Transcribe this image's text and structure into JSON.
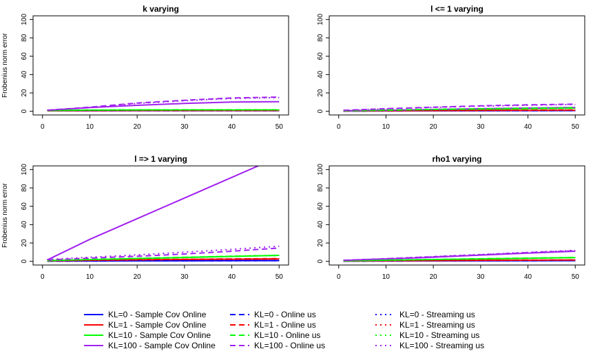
{
  "chart_data": [
    {
      "type": "line",
      "title": "k varying",
      "ylabel": "Frobenius norm error",
      "xlim": [
        0,
        50
      ],
      "ylim": [
        0,
        100
      ],
      "x": [
        1,
        10,
        20,
        30,
        40,
        50
      ],
      "series": [
        {
          "name": "KL=0 - Sample Cov Online",
          "color": "#0000ff",
          "dash": "solid",
          "values": [
            0.5,
            0.6,
            0.7,
            0.7,
            0.7,
            0.7
          ]
        },
        {
          "name": "KL=1 - Sample Cov Online",
          "color": "#ff0000",
          "dash": "solid",
          "values": [
            0.6,
            0.8,
            0.9,
            0.9,
            0.9,
            0.9
          ]
        },
        {
          "name": "KL=10 - Sample Cov Online",
          "color": "#00ff00",
          "dash": "solid",
          "values": [
            0.8,
            1.2,
            1.4,
            1.5,
            1.5,
            1.5
          ]
        },
        {
          "name": "KL=100 - Sample Cov Online",
          "color": "#a020f0",
          "dash": "solid",
          "values": [
            1.0,
            4.0,
            6.5,
            8.5,
            10.0,
            10.5
          ]
        },
        {
          "name": "KL=0 - Online us",
          "color": "#0000ff",
          "dash": "dashed",
          "values": [
            0.5,
            0.6,
            0.7,
            0.7,
            0.7,
            0.7
          ]
        },
        {
          "name": "KL=1 - Online us",
          "color": "#ff0000",
          "dash": "dashed",
          "values": [
            0.6,
            0.8,
            0.9,
            0.9,
            0.9,
            0.9
          ]
        },
        {
          "name": "KL=10 - Online us",
          "color": "#00ff00",
          "dash": "dashed",
          "values": [
            0.9,
            1.3,
            1.5,
            1.6,
            1.6,
            1.6
          ]
        },
        {
          "name": "KL=100 - Online us",
          "color": "#a020f0",
          "dash": "dashed",
          "values": [
            1.2,
            4.5,
            9.0,
            12.0,
            14.5,
            15.5
          ]
        },
        {
          "name": "KL=0 - Streaming us",
          "color": "#0000ff",
          "dash": "dotted",
          "values": [
            0.5,
            0.6,
            0.7,
            0.7,
            0.7,
            0.7
          ]
        },
        {
          "name": "KL=1 - Streaming us",
          "color": "#ff0000",
          "dash": "dotted",
          "values": [
            0.6,
            0.8,
            0.9,
            0.9,
            0.9,
            0.9
          ]
        },
        {
          "name": "KL=10 - Streaming us",
          "color": "#00ff00",
          "dash": "dotted",
          "values": [
            0.9,
            1.3,
            1.5,
            1.6,
            1.6,
            1.6
          ]
        },
        {
          "name": "KL=100 - Streaming us",
          "color": "#a020f0",
          "dash": "dotted",
          "values": [
            1.2,
            4.2,
            8.5,
            11.5,
            14.0,
            15.0
          ]
        }
      ]
    },
    {
      "type": "line",
      "title": "l <= 1 varying",
      "ylabel": "",
      "xlim": [
        0,
        50
      ],
      "ylim": [
        0,
        100
      ],
      "x": [
        1,
        10,
        20,
        30,
        40,
        50
      ],
      "series": [
        {
          "name": "KL=0 - Sample Cov Online",
          "color": "#0000ff",
          "dash": "solid",
          "values": [
            0.3,
            0.4,
            0.5,
            0.6,
            0.7,
            0.8
          ]
        },
        {
          "name": "KL=1 - Sample Cov Online",
          "color": "#ff0000",
          "dash": "solid",
          "values": [
            0.4,
            0.5,
            0.7,
            0.8,
            0.9,
            1.0
          ]
        },
        {
          "name": "KL=10 - Sample Cov Online",
          "color": "#00ff00",
          "dash": "solid",
          "values": [
            0.5,
            1.0,
            1.6,
            2.2,
            2.8,
            3.4
          ]
        },
        {
          "name": "KL=100 - Sample Cov Online",
          "color": "#a020f0",
          "dash": "solid",
          "values": [
            0.6,
            1.2,
            2.0,
            2.8,
            3.5,
            4.2
          ]
        },
        {
          "name": "KL=0 - Online us",
          "color": "#0000ff",
          "dash": "dashed",
          "values": [
            0.3,
            0.4,
            0.5,
            0.6,
            0.7,
            0.8
          ]
        },
        {
          "name": "KL=1 - Online us",
          "color": "#ff0000",
          "dash": "dashed",
          "values": [
            0.4,
            0.6,
            0.8,
            1.0,
            1.2,
            1.4
          ]
        },
        {
          "name": "KL=10 - Online us",
          "color": "#00ff00",
          "dash": "dashed",
          "values": [
            0.6,
            1.2,
            2.0,
            2.6,
            3.2,
            3.8
          ]
        },
        {
          "name": "KL=100 - Online us",
          "color": "#a020f0",
          "dash": "dashed",
          "values": [
            1.0,
            2.8,
            4.5,
            6.0,
            7.0,
            7.8
          ]
        },
        {
          "name": "KL=0 - Streaming us",
          "color": "#0000ff",
          "dash": "dotted",
          "values": [
            0.3,
            0.4,
            0.5,
            0.6,
            0.7,
            0.8
          ]
        },
        {
          "name": "KL=1 - Streaming us",
          "color": "#ff0000",
          "dash": "dotted",
          "values": [
            0.4,
            0.6,
            0.8,
            1.0,
            1.2,
            1.4
          ]
        },
        {
          "name": "KL=10 - Streaming us",
          "color": "#00ff00",
          "dash": "dotted",
          "values": [
            0.6,
            1.2,
            2.0,
            2.6,
            3.2,
            3.8
          ]
        },
        {
          "name": "KL=100 - Streaming us",
          "color": "#a020f0",
          "dash": "dotted",
          "values": [
            0.9,
            2.6,
            4.2,
            5.6,
            6.6,
            7.4
          ]
        }
      ]
    },
    {
      "type": "line",
      "title": "l => 1 varying",
      "ylabel": "Frobenius norm error",
      "xlim": [
        0,
        50
      ],
      "ylim": [
        0,
        100
      ],
      "x": [
        1,
        10,
        20,
        30,
        40,
        50
      ],
      "series": [
        {
          "name": "KL=0 - Sample Cov Online",
          "color": "#0000ff",
          "dash": "solid",
          "values": [
            0.3,
            0.4,
            0.5,
            0.6,
            0.7,
            0.8
          ]
        },
        {
          "name": "KL=1 - Sample Cov Online",
          "color": "#ff0000",
          "dash": "solid",
          "values": [
            0.5,
            1.0,
            1.5,
            2.0,
            2.3,
            2.5
          ]
        },
        {
          "name": "KL=10 - Sample Cov Online",
          "color": "#00ff00",
          "dash": "solid",
          "values": [
            0.8,
            1.8,
            3.0,
            4.2,
            5.4,
            6.5
          ]
        },
        {
          "name": "KL=100 - Sample Cov Online",
          "color": "#a020f0",
          "dash": "solid",
          "values": [
            1.5,
            24.0,
            46.5,
            69.0,
            91.5,
            114.0
          ]
        },
        {
          "name": "KL=0 - Online us",
          "color": "#0000ff",
          "dash": "dashed",
          "values": [
            0.3,
            0.4,
            0.5,
            0.6,
            0.7,
            0.8
          ]
        },
        {
          "name": "KL=1 - Online us",
          "color": "#ff0000",
          "dash": "dashed",
          "values": [
            0.6,
            1.2,
            1.8,
            2.2,
            2.6,
            3.0
          ]
        },
        {
          "name": "KL=10 - Online us",
          "color": "#00ff00",
          "dash": "dashed",
          "values": [
            0.9,
            2.0,
            3.2,
            4.4,
            5.5,
            6.5
          ]
        },
        {
          "name": "KL=100 - Online us",
          "color": "#a020f0",
          "dash": "dashed",
          "values": [
            1.5,
            3.5,
            5.5,
            8.0,
            11.0,
            14.5
          ]
        },
        {
          "name": "KL=0 - Streaming us",
          "color": "#0000ff",
          "dash": "dotted",
          "values": [
            0.3,
            0.4,
            0.5,
            0.6,
            0.7,
            0.8
          ]
        },
        {
          "name": "KL=1 - Streaming us",
          "color": "#ff0000",
          "dash": "dotted",
          "values": [
            0.6,
            1.2,
            1.8,
            2.2,
            2.6,
            3.0
          ]
        },
        {
          "name": "KL=10 - Streaming us",
          "color": "#00ff00",
          "dash": "dotted",
          "values": [
            0.9,
            2.0,
            3.2,
            4.4,
            5.5,
            6.5
          ]
        },
        {
          "name": "KL=100 - Streaming us",
          "color": "#a020f0",
          "dash": "dotted",
          "values": [
            2.0,
            4.5,
            7.0,
            10.0,
            13.0,
            16.5
          ]
        }
      ]
    },
    {
      "type": "line",
      "title": "rho1 varying",
      "ylabel": "",
      "xlim": [
        0,
        50
      ],
      "ylim": [
        0,
        100
      ],
      "x": [
        1,
        10,
        20,
        30,
        40,
        50
      ],
      "series": [
        {
          "name": "KL=0 - Sample Cov Online",
          "color": "#0000ff",
          "dash": "solid",
          "values": [
            0.3,
            0.4,
            0.5,
            0.6,
            0.7,
            0.8
          ]
        },
        {
          "name": "KL=1 - Sample Cov Online",
          "color": "#ff0000",
          "dash": "solid",
          "values": [
            0.4,
            0.6,
            0.8,
            1.0,
            1.2,
            1.4
          ]
        },
        {
          "name": "KL=10 - Sample Cov Online",
          "color": "#00ff00",
          "dash": "solid",
          "values": [
            0.6,
            1.2,
            1.9,
            2.6,
            3.3,
            4.0
          ]
        },
        {
          "name": "KL=100 - Sample Cov Online",
          "color": "#a020f0",
          "dash": "solid",
          "values": [
            1.0,
            2.5,
            4.5,
            6.8,
            9.0,
            11.0
          ]
        },
        {
          "name": "KL=0 - Online us",
          "color": "#0000ff",
          "dash": "dashed",
          "values": [
            0.3,
            0.4,
            0.5,
            0.6,
            0.7,
            0.8
          ]
        },
        {
          "name": "KL=1 - Online us",
          "color": "#ff0000",
          "dash": "dashed",
          "values": [
            0.4,
            0.7,
            0.9,
            1.1,
            1.3,
            1.5
          ]
        },
        {
          "name": "KL=10 - Online us",
          "color": "#00ff00",
          "dash": "dashed",
          "values": [
            0.6,
            1.3,
            2.0,
            2.8,
            3.5,
            4.2
          ]
        },
        {
          "name": "KL=100 - Online us",
          "color": "#a020f0",
          "dash": "dashed",
          "values": [
            1.2,
            2.8,
            5.0,
            7.2,
            9.5,
            11.5
          ]
        },
        {
          "name": "KL=0 - Streaming us",
          "color": "#0000ff",
          "dash": "dotted",
          "values": [
            0.3,
            0.4,
            0.5,
            0.6,
            0.7,
            0.8
          ]
        },
        {
          "name": "KL=1 - Streaming us",
          "color": "#ff0000",
          "dash": "dotted",
          "values": [
            0.4,
            0.7,
            0.9,
            1.1,
            1.3,
            1.5
          ]
        },
        {
          "name": "KL=10 - Streaming us",
          "color": "#00ff00",
          "dash": "dotted",
          "values": [
            0.6,
            1.3,
            2.0,
            2.8,
            3.5,
            4.2
          ]
        },
        {
          "name": "KL=100 - Streaming us",
          "color": "#a020f0",
          "dash": "dotted",
          "values": [
            1.2,
            3.0,
            5.2,
            7.5,
            9.8,
            12.0
          ]
        }
      ]
    }
  ],
  "axis_ticks": {
    "x": [
      0,
      10,
      20,
      30,
      40,
      50
    ],
    "y": [
      0,
      20,
      40,
      60,
      80,
      100
    ]
  },
  "legend": {
    "placement": "bottom",
    "columns": [
      [
        {
          "label": "KL=0 - Sample Cov Online",
          "color": "#0000ff",
          "dash": "solid"
        },
        {
          "label": "KL=1 - Sample Cov Online",
          "color": "#ff0000",
          "dash": "solid"
        },
        {
          "label": "KL=10 - Sample Cov Online",
          "color": "#00ff00",
          "dash": "solid"
        },
        {
          "label": "KL=100 - Sample Cov Online",
          "color": "#a020f0",
          "dash": "solid"
        }
      ],
      [
        {
          "label": "KL=0 - Online us",
          "color": "#0000ff",
          "dash": "dashed"
        },
        {
          "label": "KL=1 - Online us",
          "color": "#ff0000",
          "dash": "dashed"
        },
        {
          "label": "KL=10 - Online us",
          "color": "#00ff00",
          "dash": "dashed"
        },
        {
          "label": "KL=100 - Online us",
          "color": "#a020f0",
          "dash": "dashed"
        }
      ],
      [
        {
          "label": "KL=0 - Streaming us",
          "color": "#0000ff",
          "dash": "dotted"
        },
        {
          "label": "KL=1 - Streaming us",
          "color": "#ff0000",
          "dash": "dotted"
        },
        {
          "label": "KL=10 - Streaming us",
          "color": "#00ff00",
          "dash": "dotted"
        },
        {
          "label": "KL=100 - Streaming us",
          "color": "#a020f0",
          "dash": "dotted"
        }
      ]
    ]
  }
}
